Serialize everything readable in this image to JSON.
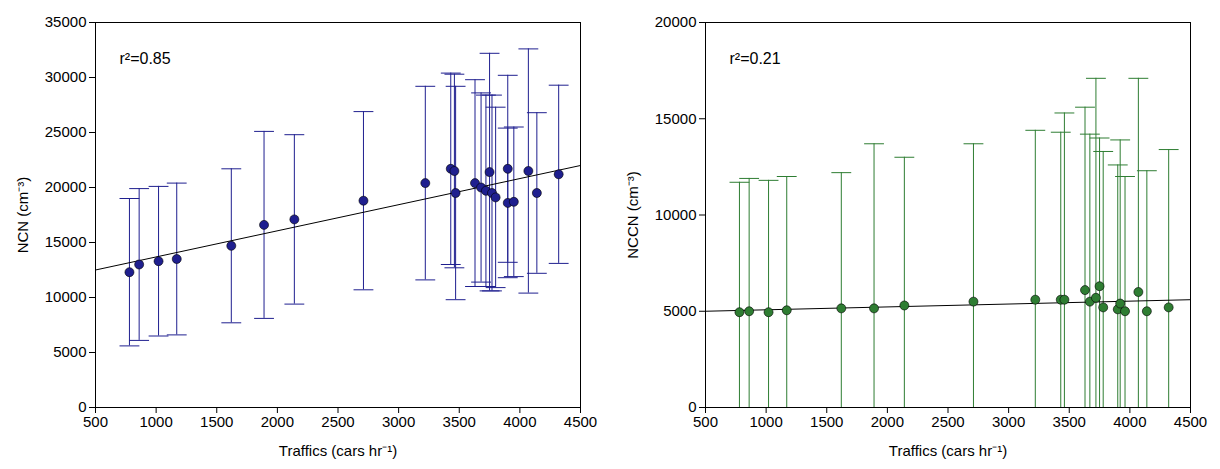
{
  "chart_data": [
    {
      "type": "scatter",
      "x_label": "Traffics (cars hr⁻¹)",
      "y_label": "NCN (cm⁻³)",
      "annotation": "r²=0.85",
      "xlim": [
        500,
        4500
      ],
      "xticks": [
        500,
        1000,
        1500,
        2000,
        2500,
        3000,
        3500,
        4000,
        4500
      ],
      "ylim": [
        0,
        35000
      ],
      "yticks": [
        0,
        5000,
        10000,
        15000,
        20000,
        25000,
        30000,
        35000
      ],
      "color": "#1f1f8f",
      "marker": "circle",
      "x": [
        780,
        860,
        1020,
        1170,
        1620,
        1890,
        2140,
        2710,
        3220,
        3430,
        3460,
        3470,
        3630,
        3680,
        3720,
        3750,
        3770,
        3800,
        3900,
        3900,
        3950,
        4070,
        4140,
        4320
      ],
      "values": [
        12300,
        13000,
        13300,
        13500,
        14700,
        16600,
        17100,
        18800,
        20400,
        21700,
        21500,
        19500,
        20400,
        20000,
        19700,
        21400,
        19500,
        19100,
        21700,
        18600,
        18700,
        21500,
        19500,
        21200
      ],
      "errors": [
        6700,
        6900,
        6800,
        6900,
        7000,
        8500,
        7700,
        8100,
        8800,
        8700,
        8800,
        9700,
        9400,
        8600,
        8700,
        10800,
        8900,
        8200,
        8500,
        6800,
        6800,
        11100,
        7300,
        8100
      ],
      "fit": {
        "x": [
          500,
          4500
        ],
        "y": [
          12500,
          22000
        ]
      }
    },
    {
      "type": "scatter",
      "x_label": "Traffics (cars hr⁻¹)",
      "y_label": "NCCN (cm⁻³)",
      "annotation": "r²=0.21",
      "xlim": [
        500,
        4500
      ],
      "xticks": [
        500,
        1000,
        1500,
        2000,
        2500,
        3000,
        3500,
        4000,
        4500
      ],
      "ylim": [
        0,
        20000
      ],
      "yticks": [
        0,
        5000,
        10000,
        15000,
        20000
      ],
      "color": "#2e7d32",
      "marker": "circle",
      "x": [
        780,
        860,
        1020,
        1170,
        1620,
        1890,
        2140,
        2710,
        3220,
        3430,
        3460,
        3630,
        3670,
        3720,
        3750,
        3780,
        3900,
        3920,
        3960,
        4070,
        4140,
        4320
      ],
      "values": [
        4950,
        5000,
        4950,
        5050,
        5150,
        5150,
        5300,
        5500,
        5600,
        5600,
        5600,
        6100,
        5500,
        5700,
        6300,
        5200,
        5100,
        5400,
        5000,
        6000,
        5000,
        5200
      ],
      "errors": [
        6750,
        6900,
        6850,
        6950,
        7050,
        8550,
        7700,
        8200,
        8800,
        8700,
        9700,
        9500,
        8700,
        11400,
        7700,
        8100,
        7500,
        8500,
        7000,
        11100,
        7300,
        8200
      ],
      "fit": {
        "x": [
          500,
          4500
        ],
        "y": [
          5000,
          5600
        ]
      }
    }
  ]
}
